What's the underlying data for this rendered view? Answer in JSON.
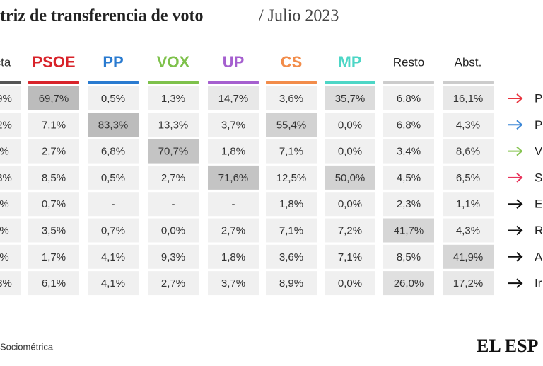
{
  "header": {
    "title": "triz de transferencia de voto",
    "subtitle": "/ Julio 2023"
  },
  "table": {
    "columns": [
      "cta",
      "PSOE",
      "PP",
      "VOX",
      "UP",
      "CS",
      "MP",
      "Resto",
      "Abst."
    ],
    "rows": [
      [
        "9%",
        "69,7%",
        "0,5%",
        "1,3%",
        "14,7%",
        "3,6%",
        "35,7%",
        "6,8%",
        "16,1%"
      ],
      [
        "2%",
        "7,1%",
        "83,3%",
        "13,3%",
        "3,7%",
        "55,4%",
        "0,0%",
        "6,8%",
        "4,3%"
      ],
      [
        "%",
        "2,7%",
        "6,8%",
        "70,7%",
        "1,8%",
        "7,1%",
        "0,0%",
        "3,4%",
        "8,6%"
      ],
      [
        "3%",
        "8,5%",
        "0,5%",
        "2,7%",
        "71,6%",
        "12,5%",
        "50,0%",
        "4,5%",
        "6,5%"
      ],
      [
        "%",
        "0,7%",
        "-",
        "-",
        "-",
        "1,8%",
        "0,0%",
        "2,3%",
        "1,1%"
      ],
      [
        "%",
        "3,5%",
        "0,7%",
        "0,0%",
        "2,7%",
        "7,1%",
        "7,2%",
        "41,7%",
        "4,3%"
      ],
      [
        "%",
        "1,7%",
        "4,1%",
        "9,3%",
        "1,8%",
        "3,6%",
        "7,1%",
        "8,5%",
        "41,9%"
      ],
      [
        "3%",
        "6,1%",
        "4,1%",
        "2,7%",
        "3,7%",
        "8,9%",
        "0,0%",
        "26,0%",
        "17,2%"
      ]
    ],
    "row_labels": [
      "P",
      "P",
      "V",
      "S",
      "E",
      "R",
      "A",
      "Ir"
    ]
  },
  "footer": {
    "source": "Sociométrica",
    "logo": "EL ESP"
  }
}
